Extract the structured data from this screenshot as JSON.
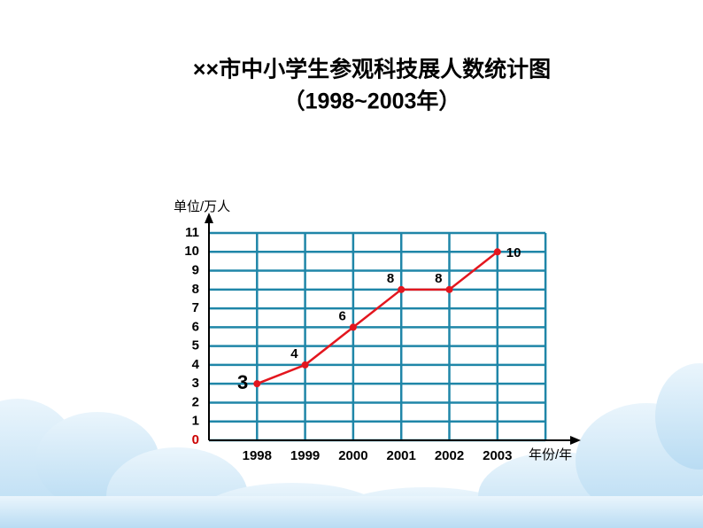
{
  "chart_data": {
    "type": "line",
    "title": "××市中小学生参观科技展人数统计图",
    "subtitle": "（1998~2003年）",
    "y_label": "单位/万人",
    "x_label": "年份/年",
    "categories": [
      "1998",
      "1999",
      "2000",
      "2001",
      "2002",
      "2003"
    ],
    "values": [
      3,
      4,
      6,
      8,
      8,
      10
    ],
    "color": "#e3161e",
    "grid_color": "#1f86a8",
    "zero_tick_color": "#cc0000",
    "ylim": [
      0,
      11
    ],
    "yticks": [
      0,
      1,
      2,
      3,
      4,
      5,
      6,
      7,
      8,
      9,
      10,
      11
    ],
    "grid": true
  }
}
